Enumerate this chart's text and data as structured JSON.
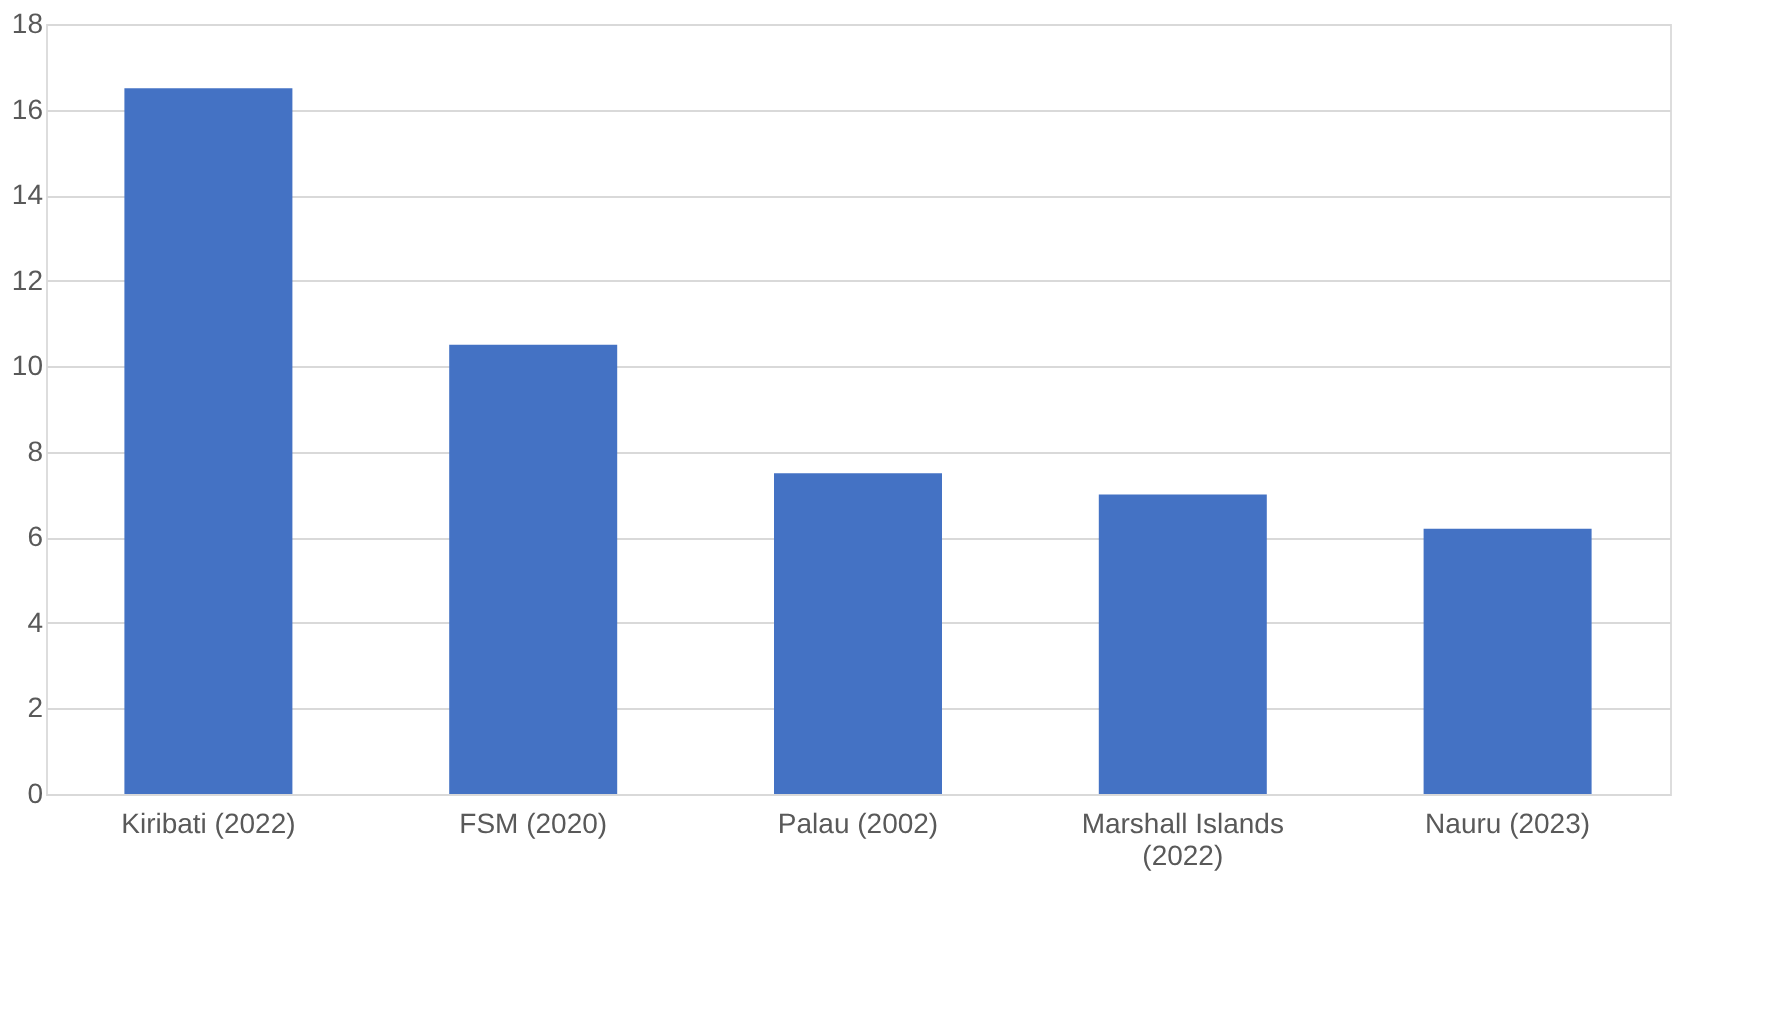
{
  "chart_data": {
    "type": "bar",
    "categories": [
      "Kiribati (2022)",
      "FSM (2020)",
      "Palau (2002)",
      "Marshall Islands (2022)",
      "Nauru (2023)"
    ],
    "values": [
      16.5,
      10.5,
      7.5,
      7.0,
      6.2
    ],
    "color": "#4472c4",
    "ylim": [
      0,
      18
    ],
    "yticks": [
      0,
      2,
      4,
      6,
      8,
      10,
      12,
      14,
      16,
      18
    ],
    "grid": "y"
  }
}
